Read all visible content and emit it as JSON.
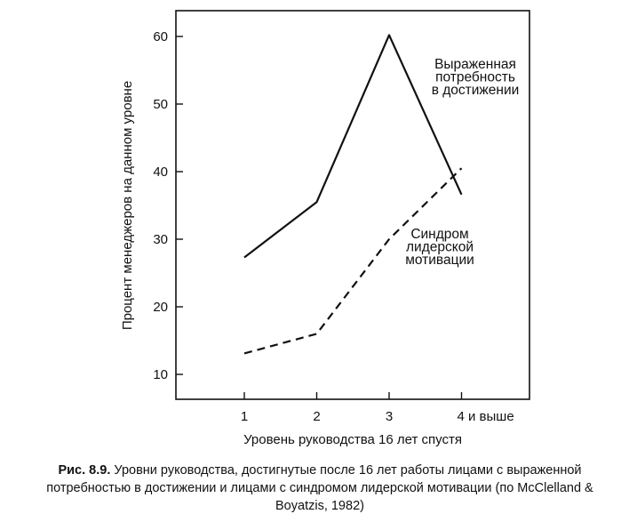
{
  "chart_data": {
    "type": "line",
    "xlabel": "Уровень руководства 16 лет спустя",
    "ylabel": "Процент менеджеров на данном уровне",
    "categories": [
      "1",
      "2",
      "3",
      "4 и выше"
    ],
    "yticks": [
      10,
      20,
      30,
      40,
      50,
      60
    ],
    "ylim": [
      10,
      60
    ],
    "grid": false,
    "series": [
      {
        "name": "Выраженная потребность в достижении",
        "style": "solid",
        "color": "#111111",
        "values": [
          27.3,
          35.5,
          60.2,
          36.6
        ],
        "label_lines": [
          "Выраженная",
          "потребность",
          "в достижении"
        ]
      },
      {
        "name": "Синдром лидерской мотивации",
        "style": "dashed",
        "color": "#111111",
        "values": [
          13.1,
          16.0,
          30.0,
          40.5
        ],
        "label_lines": [
          "Синдром",
          "лидерской",
          "мотивации"
        ]
      }
    ]
  },
  "caption": {
    "prefix": "Рис. 8.9.",
    "text": " Уровни руководства, достигнутые после 16 лет работы лицами с выраженной потребностью в достижении и лицами с синдромом лидерской мотивации (по McClelland & Boyatzis, 1982)"
  }
}
